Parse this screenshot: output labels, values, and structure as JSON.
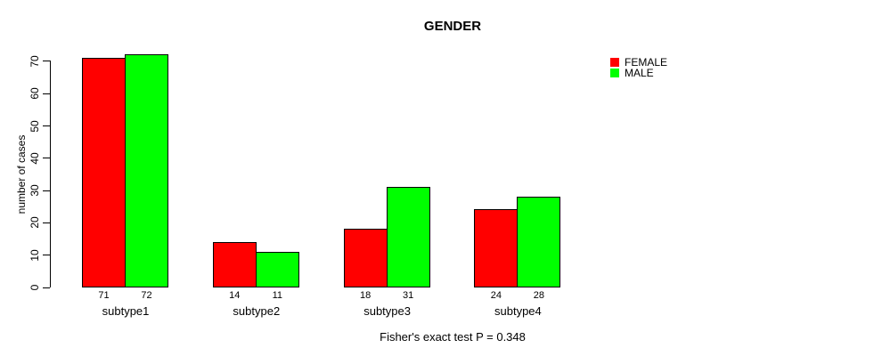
{
  "title": "GENDER",
  "caption": "Fisher's exact test P = 0.348",
  "chart_data": {
    "type": "bar",
    "categories": [
      "subtype1",
      "subtype2",
      "subtype3",
      "subtype4"
    ],
    "series": [
      {
        "name": "FEMALE",
        "color": "#ff0000",
        "values": [
          71,
          14,
          18,
          24
        ]
      },
      {
        "name": "MALE",
        "color": "#00ff00",
        "values": [
          72,
          11,
          31,
          28
        ]
      }
    ],
    "title": "GENDER",
    "xlabel": "",
    "ylabel": "number of cases",
    "ylim": [
      0,
      70
    ],
    "yticks": [
      0,
      10,
      20,
      30,
      40,
      50,
      60,
      70
    ],
    "bar_value_labels": [
      [
        71,
        14,
        18,
        24
      ],
      [
        72,
        11,
        31,
        28
      ]
    ],
    "annotation": "Fisher's exact test P = 0.348",
    "grid": false,
    "legend_position": "top-right",
    "bar_border_color": "#000000",
    "background_color": "#ffffff"
  }
}
